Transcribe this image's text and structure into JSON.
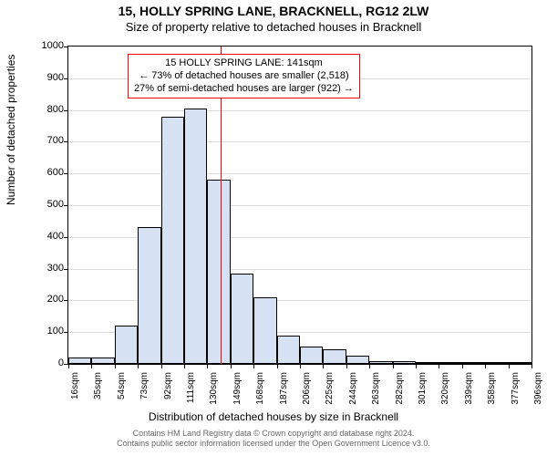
{
  "title_line1": "15, HOLLY SPRING LANE, BRACKNELL, RG12 2LW",
  "title_line2": "Size of property relative to detached houses in Bracknell",
  "chart": {
    "type": "histogram",
    "ylabel": "Number of detached properties",
    "xlabel": "Distribution of detached houses by size in Bracknell",
    "ylim": [
      0,
      1000
    ],
    "ytick_step": 100,
    "yticks": [
      0,
      100,
      200,
      300,
      400,
      500,
      600,
      700,
      800,
      900,
      1000
    ],
    "xticks": [
      "16sqm",
      "35sqm",
      "54sqm",
      "73sqm",
      "92sqm",
      "111sqm",
      "130sqm",
      "149sqm",
      "168sqm",
      "187sqm",
      "206sqm",
      "225sqm",
      "244sqm",
      "263sqm",
      "282sqm",
      "301sqm",
      "320sqm",
      "339sqm",
      "358sqm",
      "377sqm",
      "396sqm"
    ],
    "bars": [
      20,
      20,
      120,
      430,
      780,
      805,
      580,
      285,
      210,
      90,
      55,
      45,
      25,
      10,
      10,
      5,
      5,
      5,
      5,
      5
    ],
    "bar_fill": "#d6e2f3",
    "bar_border": "#000000",
    "grid_color": "#dddddd",
    "axis_color": "#000000",
    "background_color": "#ffffff",
    "reference_line": {
      "value_sqm": 141,
      "color": "#ff0000"
    },
    "annotation": {
      "border_color": "#ff0000",
      "lines": [
        "15 HOLLY SPRING LANE: 141sqm",
        "← 73% of detached houses are smaller (2,518)",
        "27% of semi-detached houses are larger (922) →"
      ]
    },
    "label_fontsize": 11,
    "tick_fontsize": 10,
    "title_fontsize": 14
  },
  "footnote_line1": "Contains HM Land Registry data © Crown copyright and database right 2024.",
  "footnote_line2": "Contains public sector information licensed under the Open Government Licence v3.0."
}
